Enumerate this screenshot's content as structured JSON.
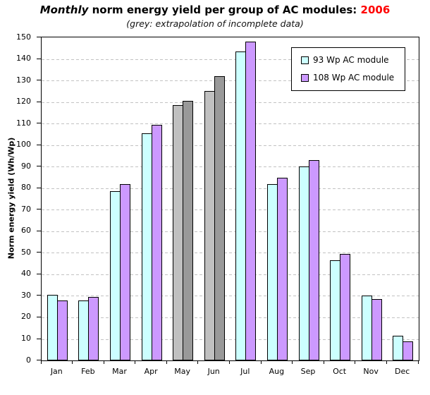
{
  "title": {
    "italic_word": "Monthly",
    "main": " norm energy yield per group of AC modules: ",
    "year": "2006",
    "year_color": "#ff0000"
  },
  "subtitle": "(grey: extrapolation of incomplete data)",
  "chart_data": {
    "type": "bar",
    "title": "Monthly norm energy yield per group of AC modules: 2006",
    "subtitle": "(grey: extrapolation of incomplete data)",
    "categories": [
      "Jan",
      "Feb",
      "Mar",
      "Apr",
      "May",
      "Jun",
      "Jul",
      "Aug",
      "Sep",
      "Oct",
      "Nov",
      "Dec"
    ],
    "series": [
      {
        "name": "93 Wp AC module",
        "color": "#ccffff",
        "grey_color": "#c0c0c0",
        "values": [
          30.5,
          28,
          78.5,
          105.5,
          118.5,
          125,
          143.5,
          82,
          90,
          46.5,
          30,
          11.5
        ]
      },
      {
        "name": "108 Wp AC module",
        "color": "#cc99ff",
        "grey_color": "#999999",
        "values": [
          28,
          29.5,
          82,
          109.5,
          120.5,
          132,
          148,
          85,
          93,
          49.5,
          28.5,
          9
        ]
      }
    ],
    "extrapolated_categories": [
      "May",
      "Jun"
    ],
    "extrapolation_note": "grey bars = extrapolation of incomplete data",
    "xlabel": "",
    "ylabel": "Norm energy yield (Wh/Wp)",
    "ylim": [
      0,
      150
    ],
    "ytick_step": 10,
    "grid": "horizontal dashed grey",
    "gridline_color": "#c2c2c2",
    "legend_position": "top-right inside plot",
    "frame_color": "#000000",
    "background_color": "#ffffff"
  }
}
